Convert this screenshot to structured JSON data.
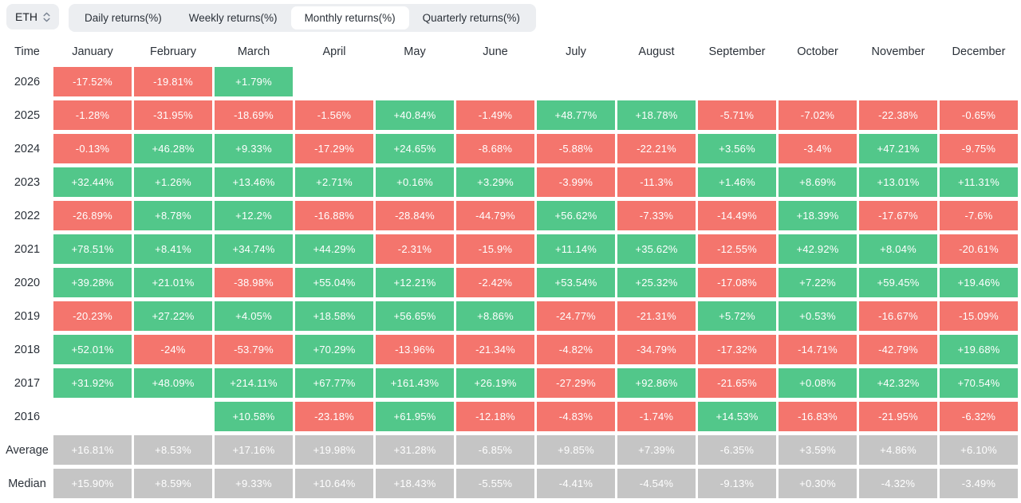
{
  "colors": {
    "positive": "#52c78a",
    "negative": "#f4756d",
    "summary": "#c5c5c5",
    "panel_bg": "#eceef1",
    "text_dark": "#2b3139"
  },
  "toolbar": {
    "symbol": "ETH",
    "updown_icon": "chevron-up-down",
    "tabs": [
      {
        "label": "Daily returns(%)",
        "active": false
      },
      {
        "label": "Weekly returns(%)",
        "active": false
      },
      {
        "label": "Monthly returns(%)",
        "active": true
      },
      {
        "label": "Quarterly returns(%)",
        "active": false
      }
    ]
  },
  "table": {
    "columns": [
      "Time",
      "January",
      "February",
      "March",
      "April",
      "May",
      "June",
      "July",
      "August",
      "September",
      "October",
      "November",
      "December"
    ],
    "rows": [
      {
        "label": "2026",
        "type": "year",
        "values": [
          "-17.52%",
          "-19.81%",
          "+1.79%",
          null,
          null,
          null,
          null,
          null,
          null,
          null,
          null,
          null
        ]
      },
      {
        "label": "2025",
        "type": "year",
        "values": [
          "-1.28%",
          "-31.95%",
          "-18.69%",
          "-1.56%",
          "+40.84%",
          "-1.49%",
          "+48.77%",
          "+18.78%",
          "-5.71%",
          "-7.02%",
          "-22.38%",
          "-0.65%"
        ]
      },
      {
        "label": "2024",
        "type": "year",
        "values": [
          "-0.13%",
          "+46.28%",
          "+9.33%",
          "-17.29%",
          "+24.65%",
          "-8.68%",
          "-5.88%",
          "-22.21%",
          "+3.56%",
          "-3.4%",
          "+47.21%",
          "-9.75%"
        ]
      },
      {
        "label": "2023",
        "type": "year",
        "values": [
          "+32.44%",
          "+1.26%",
          "+13.46%",
          "+2.71%",
          "+0.16%",
          "+3.29%",
          "-3.99%",
          "-11.3%",
          "+1.46%",
          "+8.69%",
          "+13.01%",
          "+11.31%"
        ]
      },
      {
        "label": "2022",
        "type": "year",
        "values": [
          "-26.89%",
          "+8.78%",
          "+12.2%",
          "-16.88%",
          "-28.84%",
          "-44.79%",
          "+56.62%",
          "-7.33%",
          "-14.49%",
          "+18.39%",
          "-17.67%",
          "-7.6%"
        ]
      },
      {
        "label": "2021",
        "type": "year",
        "values": [
          "+78.51%",
          "+8.41%",
          "+34.74%",
          "+44.29%",
          "-2.31%",
          "-15.9%",
          "+11.14%",
          "+35.62%",
          "-12.55%",
          "+42.92%",
          "+8.04%",
          "-20.61%"
        ]
      },
      {
        "label": "2020",
        "type": "year",
        "values": [
          "+39.28%",
          "+21.01%",
          "-38.98%",
          "+55.04%",
          "+12.21%",
          "-2.42%",
          "+53.54%",
          "+25.32%",
          "-17.08%",
          "+7.22%",
          "+59.45%",
          "+19.46%"
        ]
      },
      {
        "label": "2019",
        "type": "year",
        "values": [
          "-20.23%",
          "+27.22%",
          "+4.05%",
          "+18.58%",
          "+56.65%",
          "+8.86%",
          "-24.77%",
          "-21.31%",
          "+5.72%",
          "+0.53%",
          "-16.67%",
          "-15.09%"
        ]
      },
      {
        "label": "2018",
        "type": "year",
        "values": [
          "+52.01%",
          "-24%",
          "-53.79%",
          "+70.29%",
          "-13.96%",
          "-21.34%",
          "-4.82%",
          "-34.79%",
          "-17.32%",
          "-14.71%",
          "-42.79%",
          "+19.68%"
        ]
      },
      {
        "label": "2017",
        "type": "year",
        "values": [
          "+31.92%",
          "+48.09%",
          "+214.11%",
          "+67.77%",
          "+161.43%",
          "+26.19%",
          "-27.29%",
          "+92.86%",
          "-21.65%",
          "+0.08%",
          "+42.32%",
          "+70.54%"
        ]
      },
      {
        "label": "2016",
        "type": "year",
        "values": [
          null,
          null,
          "+10.58%",
          "-23.18%",
          "+61.95%",
          "-12.18%",
          "-4.83%",
          "-1.74%",
          "+14.53%",
          "-16.83%",
          "-21.95%",
          "-6.32%"
        ]
      },
      {
        "label": "Average",
        "type": "summary",
        "values": [
          "+16.81%",
          "+8.53%",
          "+17.16%",
          "+19.98%",
          "+31.28%",
          "-6.85%",
          "+9.85%",
          "+7.39%",
          "-6.35%",
          "+3.59%",
          "+4.86%",
          "+6.10%"
        ]
      },
      {
        "label": "Median",
        "type": "summary",
        "values": [
          "+15.90%",
          "+8.59%",
          "+9.33%",
          "+10.64%",
          "+18.43%",
          "-5.55%",
          "-4.41%",
          "-4.54%",
          "-9.13%",
          "+0.30%",
          "-4.32%",
          "-3.49%"
        ]
      }
    ]
  }
}
